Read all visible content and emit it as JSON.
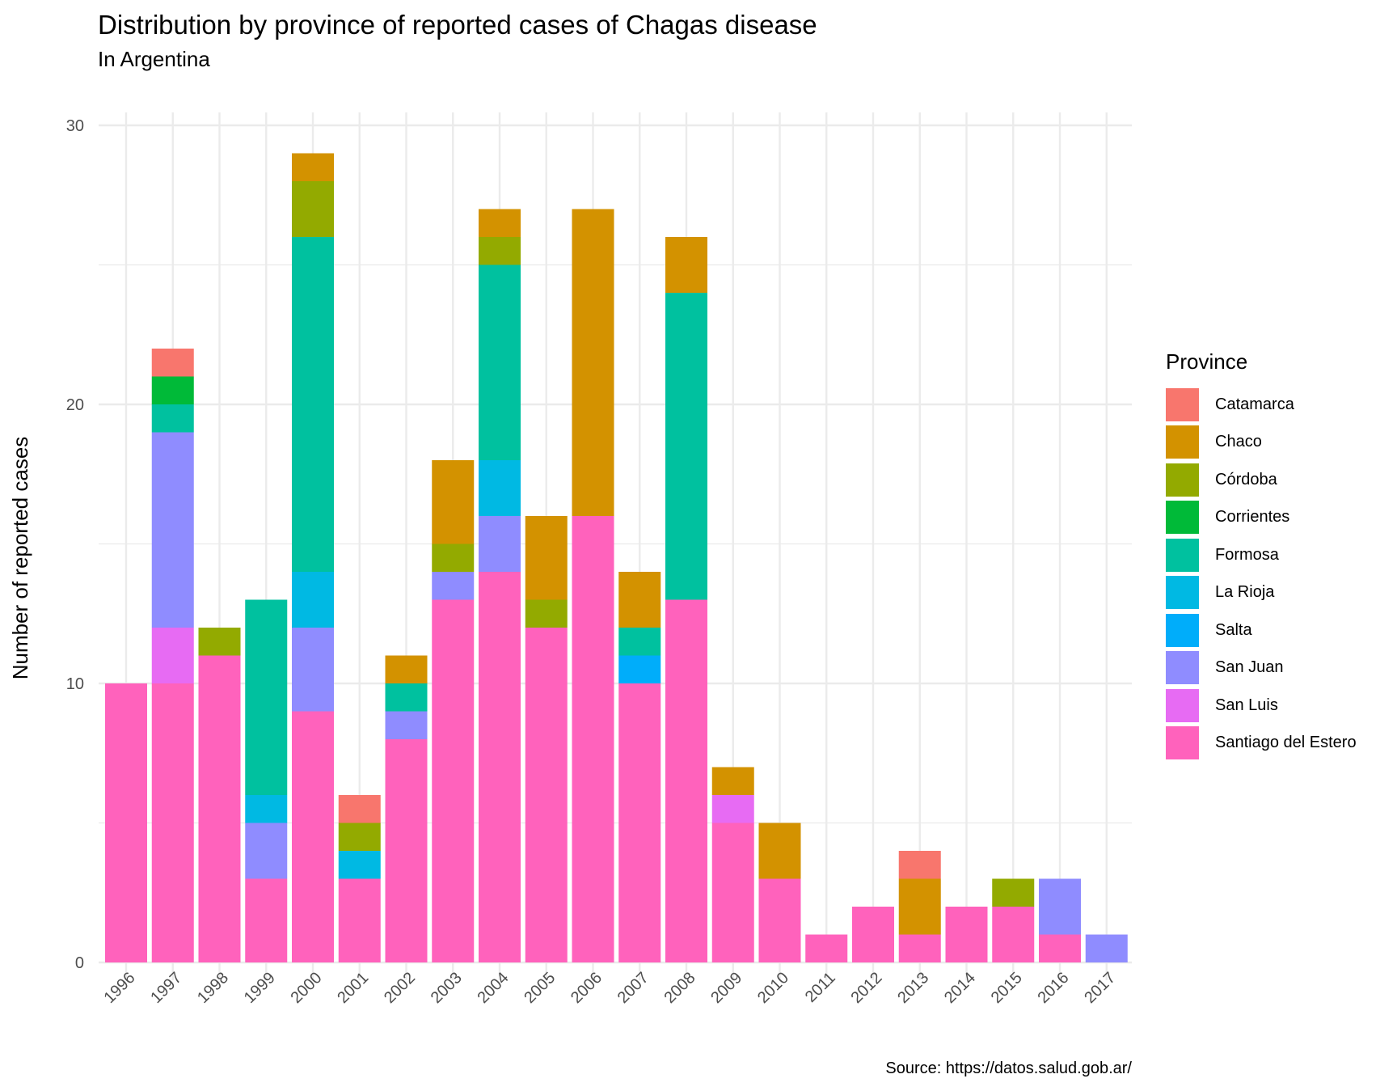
{
  "chart_data": {
    "type": "bar",
    "stacked": true,
    "title": "Distribution by province of reported cases of Chagas disease",
    "subtitle": "In Argentina",
    "caption": "Source: https://datos.salud.gob.ar/",
    "ylabel": "Number of reported cases",
    "xlabel": "",
    "ylim": [
      0,
      30
    ],
    "yticks": [
      0,
      10,
      20,
      30
    ],
    "legend_title": "Province",
    "legend_position": "right",
    "grid": true,
    "categories": [
      "1996",
      "1997",
      "1998",
      "1999",
      "2000",
      "2001",
      "2002",
      "2003",
      "2004",
      "2005",
      "2006",
      "2007",
      "2008",
      "2009",
      "2010",
      "2011",
      "2012",
      "2013",
      "2014",
      "2015",
      "2016",
      "2017"
    ],
    "series": [
      {
        "name": "Catamarca",
        "color": "#F8766D",
        "values": [
          0,
          1,
          0,
          0,
          0,
          1,
          0,
          0,
          0,
          0,
          0,
          0,
          0,
          0,
          0,
          0,
          0,
          1,
          0,
          0,
          0,
          0
        ]
      },
      {
        "name": "Chaco",
        "color": "#D39200",
        "values": [
          0,
          0,
          0,
          0,
          1,
          0,
          1,
          3,
          1,
          3,
          11,
          2,
          2,
          1,
          2,
          0,
          0,
          2,
          0,
          0,
          0,
          0
        ]
      },
      {
        "name": "Córdoba",
        "color": "#93AA00",
        "values": [
          0,
          0,
          1,
          0,
          2,
          1,
          0,
          1,
          1,
          1,
          0,
          0,
          0,
          0,
          0,
          0,
          0,
          0,
          0,
          1,
          0,
          0
        ]
      },
      {
        "name": "Corrientes",
        "color": "#00BA38",
        "values": [
          0,
          1,
          0,
          0,
          0,
          0,
          0,
          0,
          0,
          0,
          0,
          0,
          0,
          0,
          0,
          0,
          0,
          0,
          0,
          0,
          0,
          0
        ]
      },
      {
        "name": "Formosa",
        "color": "#00C19F",
        "values": [
          0,
          1,
          0,
          7,
          12,
          0,
          1,
          0,
          7,
          0,
          0,
          1,
          11,
          0,
          0,
          0,
          0,
          0,
          0,
          0,
          0,
          0
        ]
      },
      {
        "name": "La Rioja",
        "color": "#00B9E3",
        "values": [
          0,
          0,
          0,
          1,
          2,
          1,
          0,
          0,
          2,
          0,
          0,
          0,
          0,
          0,
          0,
          0,
          0,
          0,
          0,
          0,
          0,
          0
        ]
      },
      {
        "name": "Salta",
        "color": "#00ADFA",
        "values": [
          0,
          0,
          0,
          0,
          0,
          0,
          0,
          0,
          0,
          0,
          0,
          1,
          0,
          0,
          0,
          0,
          0,
          0,
          0,
          0,
          0,
          0
        ]
      },
      {
        "name": "San Juan",
        "color": "#8F8CFF",
        "values": [
          0,
          7,
          0,
          2,
          3,
          0,
          1,
          1,
          2,
          0,
          0,
          0,
          0,
          0,
          0,
          0,
          0,
          0,
          0,
          0,
          2,
          1
        ]
      },
      {
        "name": "San Luis",
        "color": "#E76BF3",
        "values": [
          0,
          2,
          0,
          0,
          0,
          0,
          0,
          0,
          0,
          0,
          0,
          0,
          0,
          1,
          0,
          0,
          0,
          0,
          0,
          0,
          0,
          0
        ]
      },
      {
        "name": "Santiago del Estero",
        "color": "#FF62BC",
        "values": [
          10,
          10,
          11,
          3,
          9,
          3,
          8,
          13,
          14,
          12,
          16,
          10,
          13,
          5,
          3,
          1,
          2,
          1,
          2,
          2,
          1,
          0
        ]
      }
    ]
  }
}
